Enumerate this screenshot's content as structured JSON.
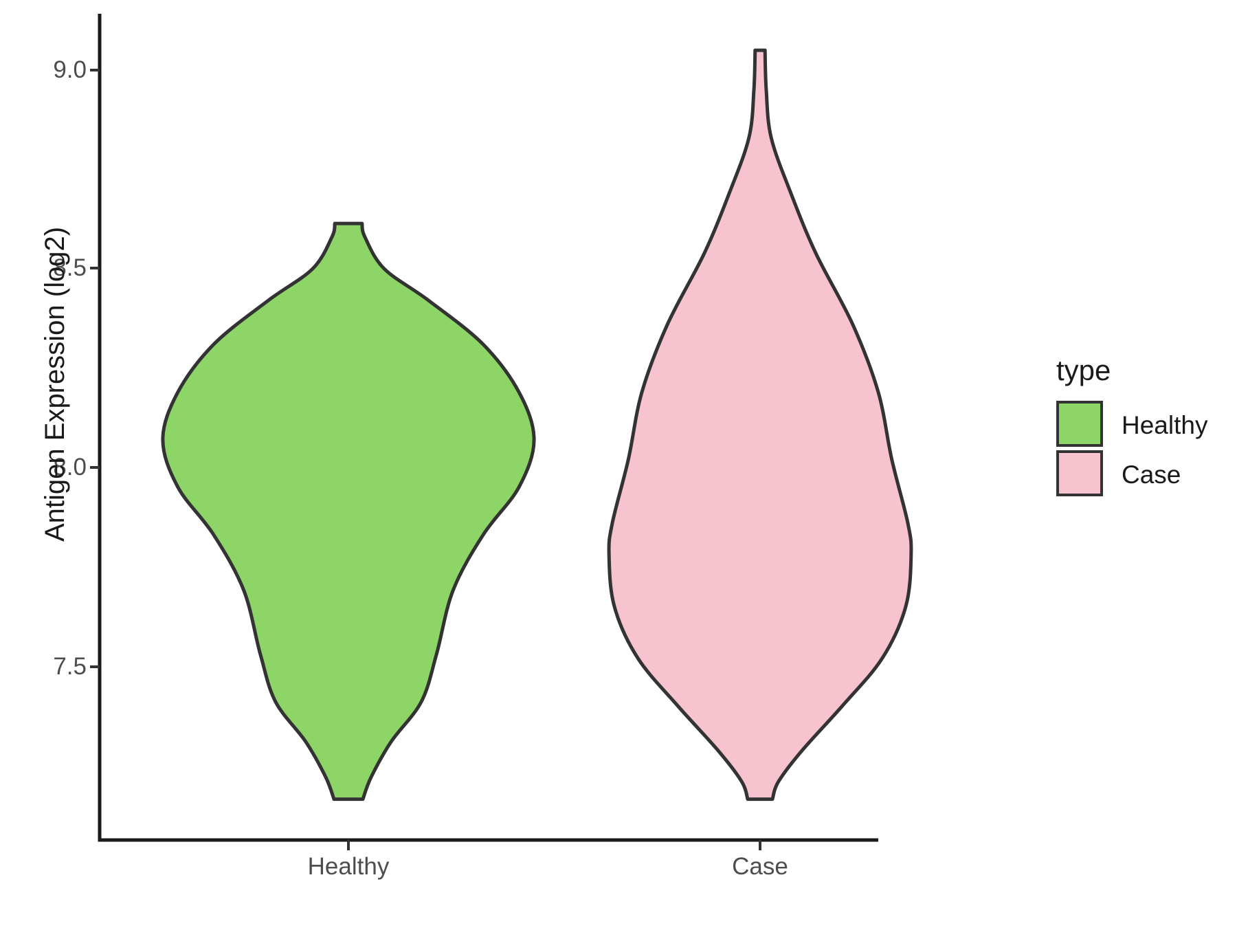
{
  "chart_data": {
    "type": "violin",
    "title": "",
    "xlabel": "",
    "ylabel": "Antigen Expression (log2)",
    "categories": [
      "Healthy",
      "Case"
    ],
    "x_tick_labels": [
      "Healthy",
      "Case"
    ],
    "y_tick_labels": [
      "9.0",
      "8.5",
      "8.0",
      "7.5"
    ],
    "y_tick_values": [
      9.0,
      8.5,
      8.0,
      7.5
    ],
    "y_axis_range_shown": [
      7.08,
      9.12
    ],
    "grid": "off",
    "legend": {
      "title": "type",
      "position": "right",
      "entries": [
        {
          "label": "Healthy",
          "color": "#8DD567"
        },
        {
          "label": "Case",
          "color": "#F6C3CE"
        }
      ]
    },
    "violins": [
      {
        "category": "Healthy",
        "fill": "#8DD567",
        "outline": "#333333",
        "min_value": 7.17,
        "max_value": 8.61,
        "widest_at_value": 8.07,
        "profile_value_halfwidth": [
          [
            8.614,
            0.033
          ],
          [
            8.58,
            0.04
          ],
          [
            8.5,
            0.087
          ],
          [
            8.42,
            0.195
          ],
          [
            8.31,
            0.327
          ],
          [
            8.19,
            0.414
          ],
          [
            8.07,
            0.451
          ],
          [
            7.95,
            0.414
          ],
          [
            7.83,
            0.327
          ],
          [
            7.69,
            0.254
          ],
          [
            7.53,
            0.214
          ],
          [
            7.41,
            0.177
          ],
          [
            7.31,
            0.104
          ],
          [
            7.22,
            0.055
          ],
          [
            7.165,
            0.035
          ]
        ]
      },
      {
        "category": "Case",
        "fill": "#F6C3CE",
        "outline": "#333333",
        "min_value": 7.17,
        "max_value": 9.05,
        "widest_at_value": 7.78,
        "profile_value_halfwidth": [
          [
            9.05,
            0.012
          ],
          [
            8.95,
            0.015
          ],
          [
            8.83,
            0.027
          ],
          [
            8.69,
            0.075
          ],
          [
            8.54,
            0.135
          ],
          [
            8.36,
            0.225
          ],
          [
            8.19,
            0.287
          ],
          [
            8.02,
            0.32
          ],
          [
            7.86,
            0.359
          ],
          [
            7.78,
            0.367
          ],
          [
            7.65,
            0.354
          ],
          [
            7.52,
            0.297
          ],
          [
            7.4,
            0.2
          ],
          [
            7.29,
            0.104
          ],
          [
            7.21,
            0.045
          ],
          [
            7.165,
            0.03
          ]
        ]
      }
    ]
  },
  "colors": {
    "background": "#FFFFFF",
    "axis_line": "#1A1A1A",
    "tick_mark": "#333333",
    "tick_text": "#4D4D4D",
    "label_text": "#1A1A1A"
  }
}
